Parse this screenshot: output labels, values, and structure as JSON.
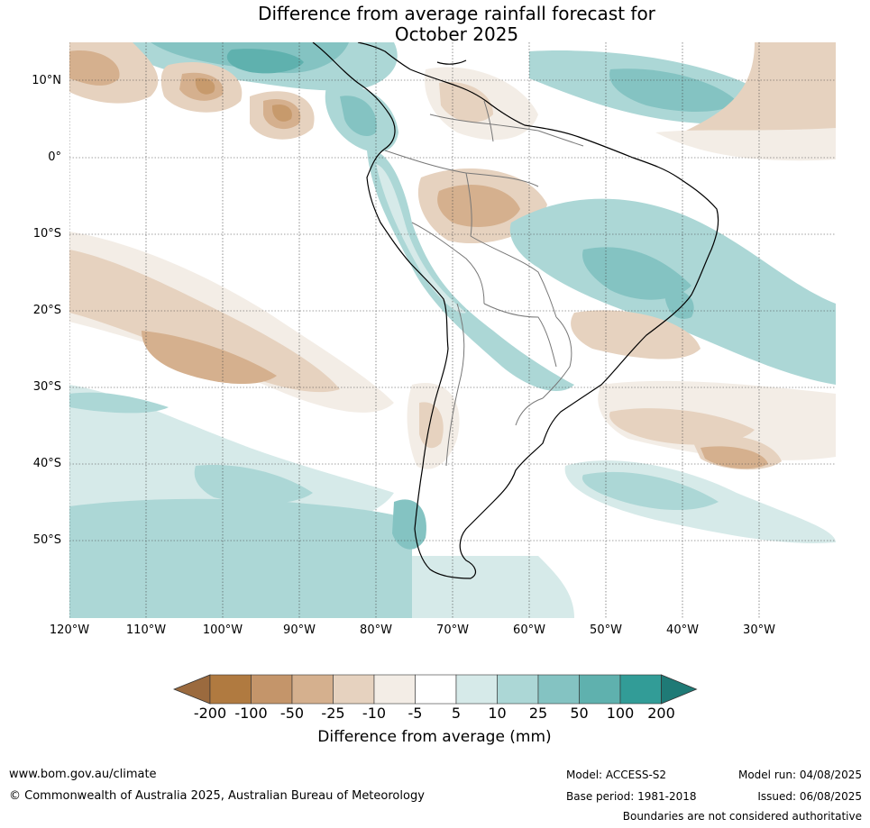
{
  "title": {
    "line1": "Difference from average rainfall forecast for",
    "line2": "October 2025"
  },
  "map": {
    "lat_labels": [
      "10°N",
      "0°",
      "10°S",
      "20°S",
      "30°S",
      "40°S",
      "50°S"
    ],
    "lon_labels": [
      "120°W",
      "110°W",
      "100°W",
      "90°W",
      "80°W",
      "70°W",
      "60°W",
      "50°W",
      "40°W",
      "30°W"
    ],
    "lon_range": [
      -120,
      -20
    ],
    "lat_range": [
      -60,
      15
    ],
    "colors": {
      "brown_strong": "#c79a6c",
      "brown_mid": "#d5b08e",
      "brown_light": "#e6d2bf",
      "brown_faint": "#f3ede6",
      "teal_faint": "#d6eae9",
      "teal_light": "#acd7d6",
      "teal_mid": "#84c3c2",
      "teal_strong": "#5fb1ae"
    }
  },
  "colorbar": {
    "colors": [
      "#9b6a3e",
      "#b07a40",
      "#c4956a",
      "#d5b08e",
      "#e6d2bf",
      "#f3ede6",
      "#ffffff",
      "#d6eae9",
      "#acd7d6",
      "#84c3c2",
      "#5fb1ae",
      "#329c97",
      "#1f7a76"
    ],
    "ticks": [
      "-200",
      "-100",
      "-50",
      "-25",
      "-10",
      "-5",
      "5",
      "10",
      "25",
      "50",
      "100",
      "200"
    ],
    "title": "Difference from average (mm)"
  },
  "footer": {
    "website": "www.bom.gov.au/climate",
    "copyright": "© Commonwealth of Australia 2025, Australian Bureau of Meteorology",
    "model": "Model: ACCESS-S2",
    "base_period": "Base period: 1981-2018",
    "model_run": "Model run: 04/08/2025",
    "issued": "Issued: 06/08/2025",
    "boundaries": "Boundaries are not considered authoritative"
  }
}
